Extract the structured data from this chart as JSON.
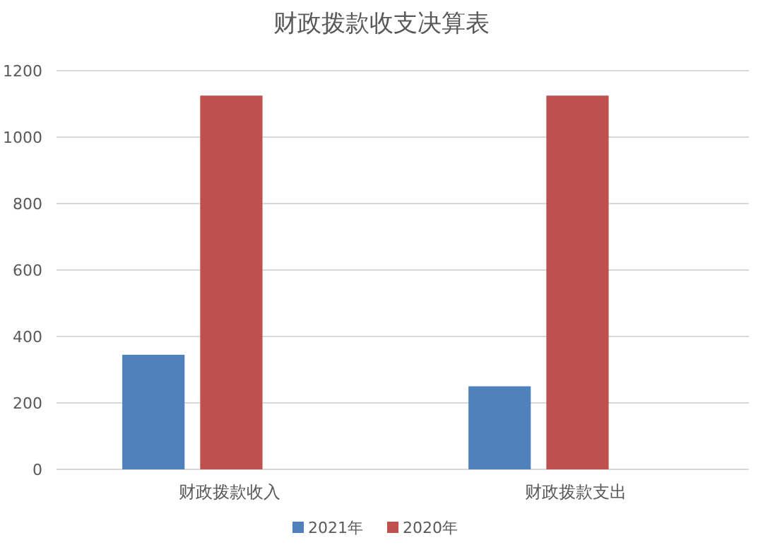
{
  "chart_data": {
    "type": "bar",
    "title": "财政拨款收支决算表",
    "categories": [
      "财政拨款收入",
      "财政拨款支出"
    ],
    "series": [
      {
        "name": "2021年",
        "color": "#4f81bd",
        "values": [
          345,
          250
        ]
      },
      {
        "name": "2020年",
        "color": "#c0504d",
        "values": [
          1125,
          1125
        ]
      }
    ],
    "ylim": [
      0,
      1200
    ],
    "yticks": [
      0,
      200,
      400,
      600,
      800,
      1000,
      1200
    ],
    "grid": "y",
    "legend": "bottom"
  }
}
